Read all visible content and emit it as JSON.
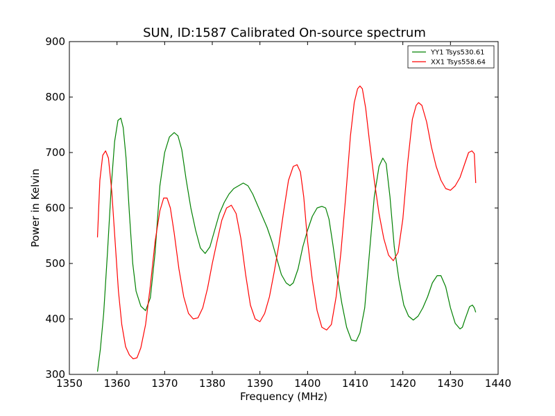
{
  "chart_data": {
    "type": "line",
    "title": "SUN, ID:1587 Calibrated On-source spectrum",
    "xlabel": "Frequency (MHz)",
    "ylabel": "Power in Kelvin",
    "xlim": [
      1350,
      1440
    ],
    "ylim": [
      300,
      900
    ],
    "xticks": [
      "1350",
      "1360",
      "1370",
      "1380",
      "1390",
      "1400",
      "1410",
      "1420",
      "1430",
      "1440"
    ],
    "yticks": [
      "300",
      "400",
      "500",
      "600",
      "700",
      "800",
      "900"
    ],
    "grid": false,
    "legend_position": "top-right",
    "series": [
      {
        "name": "YY1 Tsys530.61",
        "color": "#008000",
        "x": [
          1355.9,
          1356.5,
          1357.2,
          1358.0,
          1358.8,
          1359.5,
          1360.2,
          1360.8,
          1361.3,
          1361.9,
          1362.6,
          1363.3,
          1364.0,
          1365.0,
          1366.0,
          1367.0,
          1368.0,
          1369.0,
          1370.0,
          1371.0,
          1372.0,
          1372.8,
          1373.6,
          1374.5,
          1375.5,
          1376.5,
          1377.5,
          1378.5,
          1379.5,
          1380.5,
          1381.5,
          1382.5,
          1383.5,
          1384.5,
          1385.5,
          1386.5,
          1387.5,
          1388.5,
          1389.5,
          1390.5,
          1391.5,
          1392.5,
          1393.5,
          1394.5,
          1395.5,
          1396.3,
          1397.0,
          1398.0,
          1399.0,
          1400.0,
          1401.0,
          1402.0,
          1403.0,
          1403.8,
          1404.5,
          1405.3,
          1406.2,
          1407.2,
          1408.2,
          1409.2,
          1410.2,
          1411.0,
          1412.0,
          1413.0,
          1414.0,
          1415.0,
          1415.8,
          1416.5,
          1417.3,
          1418.2,
          1419.2,
          1420.2,
          1421.2,
          1422.2,
          1423.2,
          1424.2,
          1425.2,
          1426.2,
          1427.2,
          1428.0,
          1429.0,
          1430.0,
          1431.0,
          1432.0,
          1432.5,
          1433.0,
          1434.0,
          1434.6,
          1435.0,
          1435.3
        ],
        "y": [
          305,
          345,
          410,
          520,
          640,
          720,
          758,
          762,
          745,
          690,
          590,
          500,
          450,
          423,
          415,
          438,
          520,
          640,
          700,
          728,
          736,
          730,
          705,
          652,
          600,
          560,
          528,
          518,
          530,
          560,
          590,
          610,
          625,
          635,
          640,
          645,
          640,
          625,
          605,
          585,
          565,
          540,
          510,
          480,
          465,
          460,
          465,
          490,
          530,
          560,
          585,
          600,
          603,
          600,
          580,
          535,
          480,
          428,
          385,
          362,
          360,
          375,
          420,
          520,
          620,
          675,
          690,
          680,
          620,
          530,
          470,
          425,
          405,
          398,
          405,
          420,
          440,
          465,
          478,
          478,
          458,
          420,
          392,
          382,
          385,
          398,
          422,
          425,
          420,
          412
        ]
      },
      {
        "name": "XX1 Tsys558.64",
        "color": "#ff0000",
        "x": [
          1355.9,
          1356.4,
          1357.0,
          1357.6,
          1358.2,
          1358.9,
          1359.6,
          1360.3,
          1361.0,
          1361.8,
          1362.6,
          1363.4,
          1364.2,
          1365.0,
          1366.0,
          1367.0,
          1368.0,
          1369.0,
          1369.8,
          1370.5,
          1371.2,
          1372.0,
          1373.0,
          1374.0,
          1375.0,
          1376.0,
          1377.0,
          1378.0,
          1379.0,
          1380.0,
          1381.0,
          1382.0,
          1383.0,
          1384.0,
          1385.0,
          1386.0,
          1387.0,
          1388.0,
          1389.0,
          1390.0,
          1391.0,
          1392.0,
          1393.0,
          1394.0,
          1395.0,
          1396.0,
          1397.0,
          1397.8,
          1398.5,
          1399.2,
          1400.0,
          1401.0,
          1402.0,
          1403.0,
          1404.0,
          1405.0,
          1406.0,
          1407.0,
          1408.0,
          1409.0,
          1409.8,
          1410.5,
          1411.0,
          1411.5,
          1412.2,
          1413.0,
          1414.0,
          1415.0,
          1416.0,
          1417.0,
          1418.0,
          1419.0,
          1420.0,
          1421.0,
          1422.0,
          1422.8,
          1423.3,
          1424.0,
          1425.0,
          1426.0,
          1427.0,
          1428.0,
          1429.0,
          1430.0,
          1431.0,
          1432.0,
          1433.0,
          1433.8,
          1434.5,
          1435.0,
          1435.3
        ],
        "y": [
          547,
          650,
          695,
          703,
          690,
          630,
          540,
          450,
          390,
          350,
          335,
          328,
          330,
          348,
          390,
          460,
          540,
          595,
          618,
          618,
          600,
          555,
          490,
          440,
          410,
          400,
          402,
          420,
          455,
          500,
          540,
          578,
          600,
          605,
          590,
          545,
          480,
          425,
          400,
          395,
          410,
          440,
          485,
          535,
          595,
          650,
          675,
          678,
          665,
          620,
          540,
          470,
          415,
          385,
          380,
          390,
          440,
          520,
          620,
          730,
          790,
          815,
          820,
          815,
          780,
          720,
          650,
          590,
          545,
          515,
          505,
          520,
          580,
          680,
          760,
          785,
          790,
          785,
          755,
          710,
          675,
          650,
          635,
          632,
          640,
          655,
          680,
          700,
          703,
          698,
          645
        ]
      }
    ]
  }
}
